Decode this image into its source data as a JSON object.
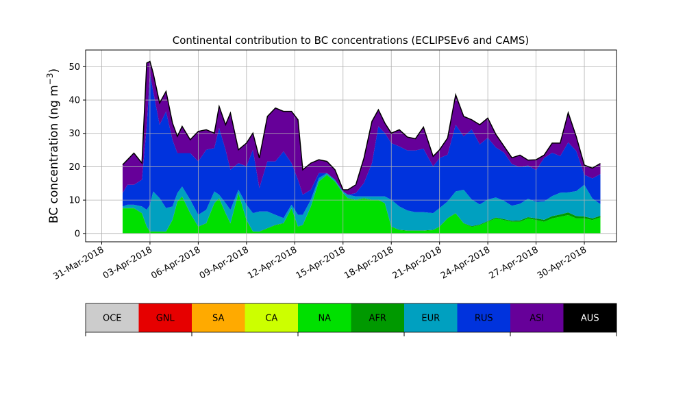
{
  "chart_data": {
    "type": "area",
    "stacked": true,
    "title": "Continental contribution to BC concentrations (ECLIPSEv6 and CAMS)",
    "xlabel": "",
    "ylabel": "BC concentration (ng m",
    "ylabel_exponent": "−3",
    "ylabel_close": ")",
    "ylim": [
      -2.5,
      55
    ],
    "xlim_days": [
      -1,
      32
    ],
    "grid": true,
    "yticks": [
      0,
      10,
      20,
      30,
      40,
      50
    ],
    "xticks": [
      {
        "day": 0,
        "label": "31-Mar-2018"
      },
      {
        "day": 3,
        "label": "03-Apr-2018"
      },
      {
        "day": 6,
        "label": "06-Apr-2018"
      },
      {
        "day": 9,
        "label": "09-Apr-2018"
      },
      {
        "day": 12,
        "label": "12-Apr-2018"
      },
      {
        "day": 15,
        "label": "15-Apr-2018"
      },
      {
        "day": 18,
        "label": "18-Apr-2018"
      },
      {
        "day": 21,
        "label": "21-Apr-2018"
      },
      {
        "day": 24,
        "label": "24-Apr-2018"
      },
      {
        "day": 27,
        "label": "27-Apr-2018"
      },
      {
        "day": 30,
        "label": "30-Apr-2018"
      }
    ],
    "x_days": [
      1.3,
      1.6,
      2.0,
      2.5,
      2.8,
      3.0,
      3.2,
      3.6,
      4.0,
      4.4,
      4.7,
      5.0,
      5.5,
      6.0,
      6.5,
      7.0,
      7.3,
      7.7,
      8.0,
      8.5,
      9.0,
      9.4,
      9.8,
      10.3,
      10.8,
      11.3,
      11.8,
      12.2,
      12.5,
      13.0,
      13.5,
      14.0,
      14.5,
      15.0,
      15.3,
      15.8,
      16.3,
      16.8,
      17.2,
      17.6,
      18.0,
      18.5,
      19.0,
      19.5,
      20.0,
      20.6,
      21.0,
      21.5,
      22.0,
      22.5,
      23.0,
      23.5,
      24.0,
      24.5,
      25.0,
      25.5,
      26.0,
      26.5,
      27.0,
      27.5,
      28.0,
      28.5,
      29.0,
      29.5,
      30.0,
      30.5,
      31.0
    ],
    "series": [
      {
        "name": "NA",
        "color": "#00e000",
        "values": [
          7.5,
          7.5,
          7.5,
          6.0,
          2.0,
          0.5,
          0.5,
          0.5,
          0.5,
          4.0,
          9.5,
          11.0,
          6.0,
          2.0,
          3.0,
          9.0,
          10.5,
          6.0,
          3.0,
          12.0,
          4.0,
          0.5,
          0.5,
          1.5,
          2.5,
          3.0,
          7.5,
          2.0,
          2.5,
          8.0,
          15.5,
          17.5,
          15.5,
          12.0,
          10.5,
          10.0,
          10.5,
          10.0,
          10.0,
          9.0,
          2.0,
          1.0,
          0.8,
          0.8,
          0.8,
          1.0,
          2.0,
          4.5,
          6.0,
          3.0,
          2.0,
          2.5,
          3.5,
          4.5,
          4.0,
          3.5,
          3.5,
          4.5,
          4.0,
          3.5,
          4.5,
          5.0,
          5.5,
          4.5,
          4.5,
          4.0,
          4.8
        ]
      },
      {
        "name": "AFR",
        "color": "#009900",
        "values": [
          0.1,
          0.1,
          0.1,
          0.1,
          0.1,
          0.1,
          0.1,
          0.1,
          0.1,
          0.1,
          0.1,
          0.1,
          0.1,
          0.1,
          0.1,
          0.1,
          0.1,
          0.1,
          0.1,
          0.1,
          0.1,
          0.1,
          0.1,
          0.1,
          0.1,
          0.1,
          0.1,
          0.1,
          0.1,
          0.1,
          0.1,
          0.1,
          0.1,
          0.1,
          0.1,
          0.1,
          0.1,
          0.1,
          0.1,
          0.1,
          0.1,
          0.1,
          0.1,
          0.1,
          0.1,
          0.1,
          0.1,
          0.1,
          0.1,
          0.1,
          0.2,
          0.2,
          0.2,
          0.3,
          0.3,
          0.3,
          0.4,
          0.4,
          0.5,
          0.6,
          0.7,
          0.7,
          0.8,
          0.7,
          0.6,
          0.5,
          0.5
        ]
      },
      {
        "name": "EUR",
        "color": "#00a0c0",
        "values": [
          0.5,
          1.0,
          1.0,
          2.0,
          5.0,
          8.0,
          12.0,
          10.0,
          7.0,
          4.0,
          2.5,
          3.0,
          4.0,
          3.5,
          4.0,
          3.5,
          1.0,
          3.0,
          4.0,
          1.0,
          4.5,
          5.5,
          6.0,
          5.0,
          3.0,
          1.5,
          1.0,
          3.5,
          3.0,
          2.0,
          1.0,
          0.5,
          0.5,
          0.5,
          1.0,
          1.0,
          0.5,
          1.0,
          1.0,
          2.0,
          8.0,
          7.0,
          6.0,
          5.5,
          5.5,
          5.0,
          5.5,
          5.0,
          6.5,
          10.0,
          8.0,
          6.0,
          6.5,
          6.0,
          5.5,
          4.5,
          5.0,
          5.5,
          5.0,
          5.5,
          6.0,
          6.5,
          6.0,
          7.5,
          9.5,
          6.0,
          3.5
        ]
      },
      {
        "name": "RUS",
        "color": "#0033dd",
        "values": [
          4.0,
          6.0,
          6.0,
          8.0,
          25.0,
          39.5,
          30.0,
          22.0,
          29.0,
          20.0,
          12.0,
          10.0,
          14.0,
          16.0,
          18.0,
          13.0,
          20.0,
          16.0,
          12.0,
          8.0,
          11.5,
          19.0,
          7.0,
          15.0,
          16.0,
          20.0,
          12.5,
          10.5,
          6.0,
          3.0,
          1.5,
          0.0,
          0.0,
          0.0,
          0.0,
          1.0,
          4.0,
          10.0,
          21.0,
          19.0,
          17.0,
          18.0,
          18.0,
          18.5,
          19.0,
          14.0,
          15.0,
          14.0,
          20.0,
          16.0,
          21.0,
          18.0,
          18.5,
          15.0,
          14.5,
          12.5,
          11.0,
          10.0,
          9.5,
          13.0,
          13.0,
          11.0,
          15.0,
          12.0,
          3.0,
          6.0,
          9.0
        ]
      },
      {
        "name": "ASI",
        "color": "#660099",
        "values": [
          8.4,
          7.4,
          9.4,
          4.9,
          18.9,
          3.4,
          5.4,
          6.4,
          5.9,
          4.9,
          4.9,
          7.9,
          3.9,
          8.9,
          5.9,
          4.4,
          6.4,
          7.4,
          16.9,
          3.9,
          6.9,
          4.9,
          8.9,
          13.4,
          15.9,
          11.9,
          15.4,
          17.9,
          7.4,
          7.9,
          3.9,
          3.4,
          2.9,
          0.4,
          1.4,
          2.4,
          7.4,
          12.4,
          4.9,
          2.9,
          2.9,
          4.9,
          3.9,
          3.4,
          6.4,
          2.9,
          2.4,
          4.9,
          8.9,
          5.9,
          2.8,
          5.8,
          5.8,
          3.8,
          1.8,
          1.8,
          3.5,
          1.5,
          3.0,
          0.8,
          2.8,
          3.8,
          8.8,
          4.2,
          2.8,
          3.0,
          3.1
        ]
      },
      {
        "name": "AUS",
        "color": "#000000",
        "values": [
          0.1,
          0.1,
          0.1,
          0.1,
          0.1,
          0.1,
          0.1,
          0.1,
          0.1,
          0.1,
          0.1,
          0.1,
          0.1,
          0.1,
          0.1,
          0.1,
          0.1,
          0.1,
          0.1,
          0.1,
          0.1,
          0.1,
          0.1,
          0.1,
          0.1,
          0.1,
          0.1,
          0.1,
          0.1,
          0.1,
          0.1,
          0.1,
          0.1,
          0.1,
          0.1,
          0.1,
          0.1,
          0.1,
          0.1,
          0.1,
          0.1,
          0.1,
          0.1,
          0.1,
          0.1,
          0.1,
          0.1,
          0.1,
          0.1,
          0.1,
          0.1,
          0.1,
          0.1,
          0.1,
          0.1,
          0.1,
          0.1,
          0.1,
          0.1,
          0.1,
          0.1,
          0.1,
          0.1,
          0.1,
          0.1,
          0.1,
          0.1
        ]
      }
    ],
    "legend": [
      {
        "label": "OCE",
        "color": "#cccccc",
        "text_color": "#000000"
      },
      {
        "label": "GNL",
        "color": "#e60000",
        "text_color": "#000000"
      },
      {
        "label": "SA",
        "color": "#ffaa00",
        "text_color": "#000000"
      },
      {
        "label": "CA",
        "color": "#ccff00",
        "text_color": "#000000"
      },
      {
        "label": "NA",
        "color": "#00e000",
        "text_color": "#000000"
      },
      {
        "label": "AFR",
        "color": "#009900",
        "text_color": "#000000"
      },
      {
        "label": "EUR",
        "color": "#00a0c0",
        "text_color": "#000000"
      },
      {
        "label": "RUS",
        "color": "#0033dd",
        "text_color": "#000000"
      },
      {
        "label": "ASI",
        "color": "#660099",
        "text_color": "#000000"
      },
      {
        "label": "AUS",
        "color": "#000000",
        "text_color": "#ffffff"
      }
    ],
    "legend_placement": "bottom"
  }
}
